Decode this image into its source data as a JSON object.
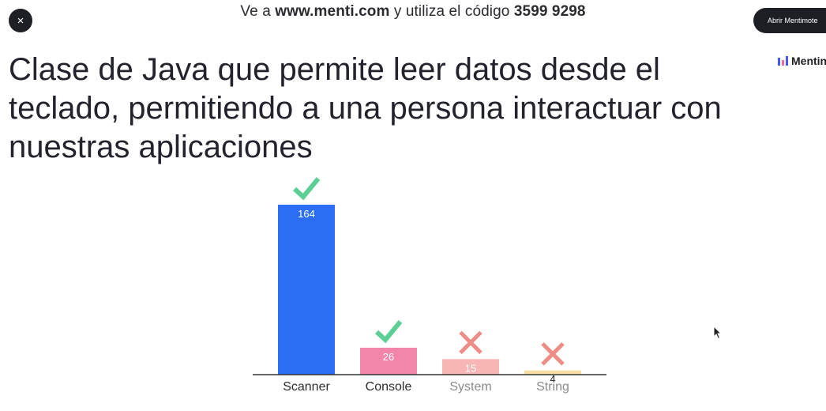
{
  "header": {
    "close_label": "×",
    "join_prefix": "Ve a",
    "join_url": "www.menti.com",
    "join_middle": "y utiliza el código",
    "join_code": "3599 9298",
    "open_button_label": "Abrir Mentimote",
    "brand_label": "Mentin"
  },
  "question": {
    "title": "Clase de Java que permite leer datos desde el teclado, permitiendo a una persona interactuar con nuestras aplicaciones"
  },
  "colors": {
    "correct_mark": "#5ccf95",
    "wrong_mark": "#ee8d86",
    "axis": "#333333",
    "bar_label": "#ffffff",
    "category_text": "#2c2c2c",
    "category_text_muted": "#8a8a8a"
  },
  "chart_data": {
    "type": "bar",
    "categories": [
      "Scanner",
      "Console",
      "System",
      "String"
    ],
    "values": [
      164,
      26,
      15,
      4
    ],
    "correct": [
      true,
      true,
      false,
      false
    ],
    "bar_colors": [
      "#2b6ef5",
      "#f185aa",
      "#f7b6b3",
      "#f6dfa1"
    ],
    "ylim": [
      0,
      164
    ]
  }
}
